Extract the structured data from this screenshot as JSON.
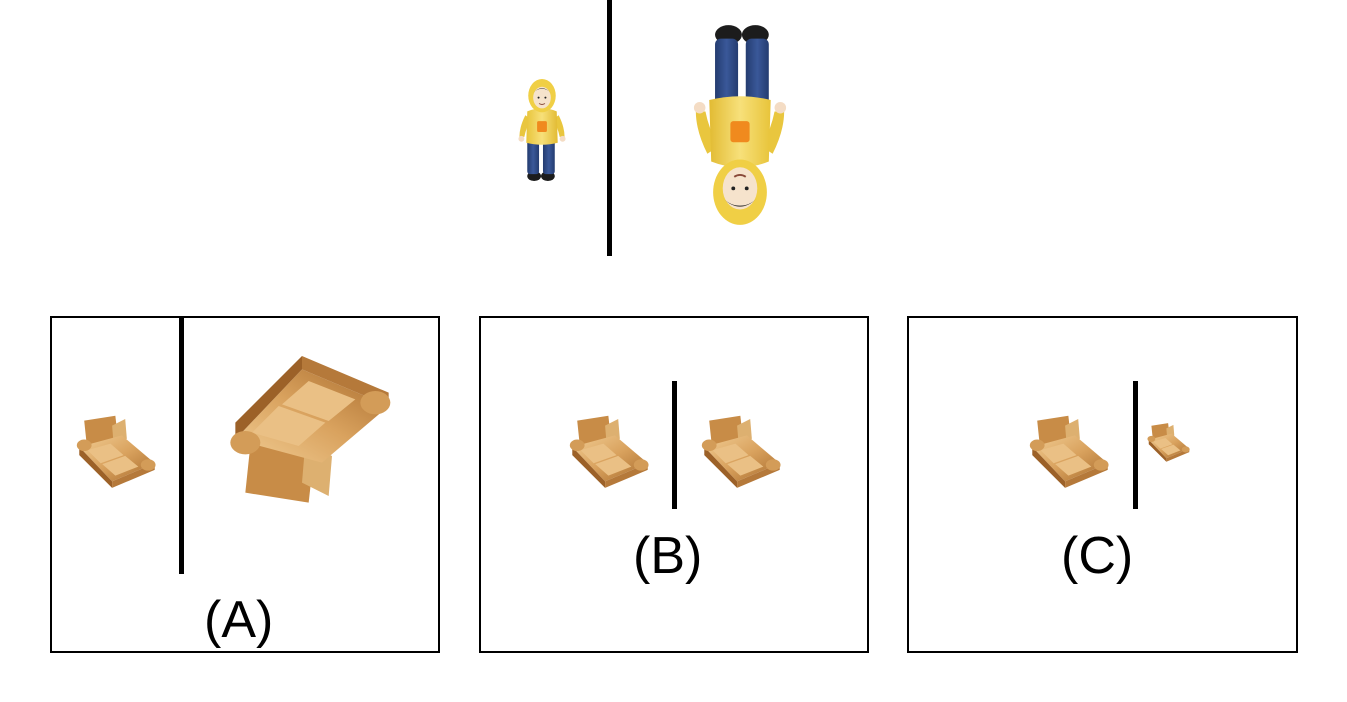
{
  "question": {
    "left_figure": "doll-figure",
    "right_figure": "doll-figure"
  },
  "options": [
    {
      "label": "(A)"
    },
    {
      "label": "(B)"
    },
    {
      "label": "(C)"
    }
  ],
  "colors": {
    "line": "#000000",
    "sofa_light": "#e8b878",
    "sofa_dark": "#a86b2c",
    "coat_yellow": "#f2d54a",
    "jeans_blue": "#2e4a86"
  }
}
